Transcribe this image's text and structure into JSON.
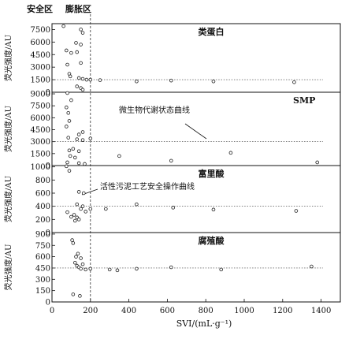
{
  "chart_data": {
    "type": "scatter",
    "xlabel": "SVI/(mL·g⁻¹)",
    "xlim": [
      0,
      1500
    ],
    "xticks": [
      0,
      200,
      400,
      600,
      800,
      1000,
      1200,
      1400
    ],
    "zones": {
      "safe": "安全区",
      "bulking": "膨胀区"
    },
    "panels": [
      {
        "title": "类蛋白",
        "ylabel": "荧光强度/AU",
        "ylim": [
          0,
          8200
        ],
        "yticks": [
          0,
          1500,
          3000,
          4500,
          6000,
          7500
        ],
        "reference_line": 1500,
        "points": [
          {
            "x": 60,
            "y": 7900
          },
          {
            "x": 150,
            "y": 7500
          },
          {
            "x": 160,
            "y": 7100
          },
          {
            "x": 125,
            "y": 5900
          },
          {
            "x": 150,
            "y": 5700
          },
          {
            "x": 75,
            "y": 5000
          },
          {
            "x": 100,
            "y": 4700
          },
          {
            "x": 130,
            "y": 4800
          },
          {
            "x": 80,
            "y": 3300
          },
          {
            "x": 150,
            "y": 3500
          },
          {
            "x": 90,
            "y": 2200
          },
          {
            "x": 95,
            "y": 1900
          },
          {
            "x": 140,
            "y": 1700
          },
          {
            "x": 160,
            "y": 1600
          },
          {
            "x": 180,
            "y": 1500
          },
          {
            "x": 130,
            "y": 700
          },
          {
            "x": 150,
            "y": 500
          },
          {
            "x": 160,
            "y": 300
          },
          {
            "x": 200,
            "y": 1500
          },
          {
            "x": 250,
            "y": 1450
          },
          {
            "x": 440,
            "y": 1300
          },
          {
            "x": 620,
            "y": 1400
          },
          {
            "x": 840,
            "y": 1300
          },
          {
            "x": 1260,
            "y": 1200
          }
        ]
      },
      {
        "title": "SMP",
        "ylabel": "荧光强度/AU",
        "ylim": [
          0,
          9200
        ],
        "yticks": [
          0,
          1500,
          3000,
          4500,
          6000,
          7500,
          9000
        ],
        "reference_line": 3000,
        "annotations": [
          {
            "text": "微生物代谢状态曲线"
          }
        ],
        "points": [
          {
            "x": 80,
            "y": 9100
          },
          {
            "x": 100,
            "y": 8200
          },
          {
            "x": 75,
            "y": 7300
          },
          {
            "x": 85,
            "y": 6600
          },
          {
            "x": 90,
            "y": 5600
          },
          {
            "x": 75,
            "y": 4900
          },
          {
            "x": 160,
            "y": 4200
          },
          {
            "x": 140,
            "y": 3900
          },
          {
            "x": 85,
            "y": 3500
          },
          {
            "x": 130,
            "y": 3300
          },
          {
            "x": 160,
            "y": 3200
          },
          {
            "x": 200,
            "y": 3400
          },
          {
            "x": 90,
            "y": 1900
          },
          {
            "x": 110,
            "y": 2100
          },
          {
            "x": 140,
            "y": 1800
          },
          {
            "x": 95,
            "y": 1200
          },
          {
            "x": 120,
            "y": 1000
          },
          {
            "x": 80,
            "y": 400
          },
          {
            "x": 140,
            "y": 300
          },
          {
            "x": 170,
            "y": 200
          },
          {
            "x": 350,
            "y": 1200
          },
          {
            "x": 620,
            "y": 600
          },
          {
            "x": 930,
            "y": 1600
          },
          {
            "x": 1380,
            "y": 400
          }
        ]
      },
      {
        "title": "富里酸",
        "ylabel": "荧光强度/AU",
        "ylim": [
          0,
          1020
        ],
        "yticks": [
          0,
          200,
          400,
          600,
          800,
          1000
        ],
        "reference_line": 400,
        "annotations": [
          {
            "text": "活性污泥工艺安全操作曲线"
          }
        ],
        "points": [
          {
            "x": 75,
            "y": 1010
          },
          {
            "x": 90,
            "y": 940
          },
          {
            "x": 140,
            "y": 620
          },
          {
            "x": 165,
            "y": 600
          },
          {
            "x": 130,
            "y": 430
          },
          {
            "x": 160,
            "y": 400
          },
          {
            "x": 150,
            "y": 360
          },
          {
            "x": 80,
            "y": 310
          },
          {
            "x": 115,
            "y": 270
          },
          {
            "x": 100,
            "y": 240
          },
          {
            "x": 130,
            "y": 230
          },
          {
            "x": 140,
            "y": 200
          },
          {
            "x": 120,
            "y": 180
          },
          {
            "x": 175,
            "y": 320
          },
          {
            "x": 200,
            "y": 360
          },
          {
            "x": 280,
            "y": 360
          },
          {
            "x": 440,
            "y": 430
          },
          {
            "x": 630,
            "y": 380
          },
          {
            "x": 840,
            "y": 350
          },
          {
            "x": 1270,
            "y": 330
          }
        ]
      },
      {
        "title": "腐殖酸",
        "ylabel": "荧光强度/AU",
        "ylim": [
          0,
          920
        ],
        "yticks": [
          0,
          150,
          300,
          450,
          600,
          750,
          900
        ],
        "reference_line": 450,
        "points": [
          {
            "x": 105,
            "y": 820
          },
          {
            "x": 110,
            "y": 780
          },
          {
            "x": 135,
            "y": 640
          },
          {
            "x": 125,
            "y": 600
          },
          {
            "x": 150,
            "y": 580
          },
          {
            "x": 120,
            "y": 520
          },
          {
            "x": 160,
            "y": 500
          },
          {
            "x": 130,
            "y": 480
          },
          {
            "x": 140,
            "y": 460
          },
          {
            "x": 150,
            "y": 440
          },
          {
            "x": 175,
            "y": 430
          },
          {
            "x": 200,
            "y": 440
          },
          {
            "x": 110,
            "y": 100
          },
          {
            "x": 145,
            "y": 80
          },
          {
            "x": 300,
            "y": 430
          },
          {
            "x": 340,
            "y": 420
          },
          {
            "x": 440,
            "y": 440
          },
          {
            "x": 620,
            "y": 460
          },
          {
            "x": 880,
            "y": 430
          },
          {
            "x": 1350,
            "y": 470
          }
        ]
      }
    ]
  }
}
